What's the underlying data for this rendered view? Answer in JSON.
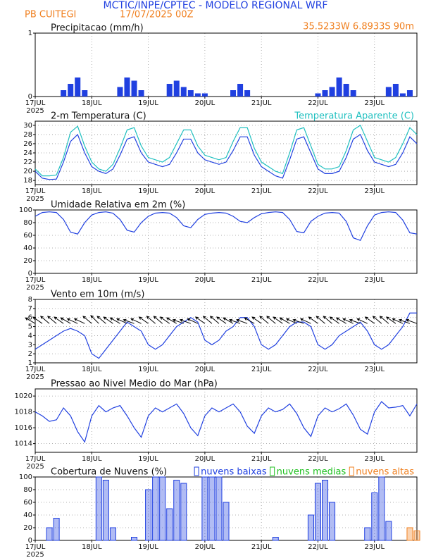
{
  "header": {
    "title": "MCTIC/INPE/CPTEC - MODELO REGIONAL WRF",
    "station": "PB CUITEGI",
    "run": "17/07/2025 00Z",
    "location": "35.5233W 6.8933S 90m"
  },
  "chart_data": [
    {
      "type": "bar",
      "title": "Precipitacao (mm/h)",
      "year_label": "2025",
      "x": [
        0,
        3,
        6,
        9,
        12,
        15,
        18,
        21,
        24,
        27,
        30,
        33,
        36,
        39,
        42,
        45,
        48,
        51,
        54,
        57,
        60,
        63,
        66,
        69,
        72,
        75,
        78,
        81,
        84,
        87,
        90,
        93,
        96,
        99,
        102,
        105,
        108,
        111,
        114,
        117,
        120,
        123,
        126,
        129,
        132,
        135,
        138,
        141,
        144,
        147,
        150,
        153,
        156,
        159,
        162
      ],
      "series": [
        {
          "name": null,
          "color": "#2040e0",
          "values": [
            0,
            0,
            0,
            0,
            0.1,
            0.2,
            0.3,
            0.1,
            0,
            0,
            0,
            0,
            0.15,
            0.3,
            0.25,
            0.1,
            0,
            0,
            0,
            0.2,
            0.25,
            0.15,
            0.1,
            0.05,
            0.05,
            0,
            0,
            0,
            0.1,
            0.2,
            0.1,
            0,
            0,
            0,
            0,
            0,
            0,
            0,
            0,
            0,
            0.05,
            0.1,
            0.15,
            0.3,
            0.2,
            0.1,
            0,
            0,
            0,
            0,
            0.15,
            0.2,
            0.05,
            0.1,
            0
          ]
        }
      ],
      "xlim": [
        0,
        162
      ],
      "xticks": [
        {
          "value": 0,
          "label": "17JUL"
        },
        {
          "value": 24,
          "label": "18JUL"
        },
        {
          "value": 48,
          "label": "19JUL"
        },
        {
          "value": 72,
          "label": "20JUL"
        },
        {
          "value": 96,
          "label": "21JUL"
        },
        {
          "value": 120,
          "label": "22JUL"
        },
        {
          "value": 144,
          "label": "23JUL"
        }
      ],
      "ylim": [
        0,
        1
      ],
      "yticks": [
        0,
        1
      ],
      "grid": true
    },
    {
      "type": "line",
      "year_label": "2025",
      "x": [
        0,
        3,
        6,
        9,
        12,
        15,
        18,
        21,
        24,
        27,
        30,
        33,
        36,
        39,
        42,
        45,
        48,
        51,
        54,
        57,
        60,
        63,
        66,
        69,
        72,
        75,
        78,
        81,
        84,
        87,
        90,
        93,
        96,
        99,
        102,
        105,
        108,
        111,
        114,
        117,
        120,
        123,
        126,
        129,
        132,
        135,
        138,
        141,
        144,
        147,
        150,
        153,
        156,
        159,
        162
      ],
      "series": [
        {
          "name": "2-m Temperatura (C)",
          "color": "#2040e0",
          "values": [
            20,
            18.5,
            18.2,
            18.3,
            22,
            26.5,
            28,
            24,
            21,
            20,
            19.5,
            20.5,
            23.5,
            27,
            27.5,
            24,
            22,
            21.5,
            21,
            21.5,
            24,
            27,
            27,
            24,
            22.5,
            22,
            21.5,
            22,
            24.5,
            27.5,
            27.5,
            23.5,
            21,
            20,
            19,
            18.5,
            22.5,
            27,
            27.5,
            24,
            20.5,
            19.5,
            19.5,
            20,
            23,
            27,
            28,
            24.5,
            22,
            21.5,
            21,
            21.5,
            24,
            27.5,
            26
          ]
        },
        {
          "name": "Temperatura Aparente (C)",
          "color": "#20c0c0",
          "values": [
            20.5,
            19,
            19,
            19.2,
            23,
            28.5,
            29.8,
            25.5,
            22,
            20.5,
            20,
            21.5,
            25,
            29,
            29.5,
            25.5,
            23,
            22.5,
            22,
            23,
            26,
            29,
            29,
            25.5,
            23.5,
            23,
            22.5,
            23,
            26.5,
            29.5,
            29.5,
            25,
            22,
            21,
            20,
            19.5,
            24,
            29,
            29.5,
            25.5,
            21.5,
            20.5,
            20.5,
            21,
            24.5,
            29,
            30,
            26.5,
            23,
            22.5,
            22,
            23,
            26,
            29.5,
            28
          ]
        }
      ],
      "xlim": [
        0,
        162
      ],
      "xticks": [
        {
          "value": 0,
          "label": "17JUL"
        },
        {
          "value": 24,
          "label": "18JUL"
        },
        {
          "value": 48,
          "label": "19JUL"
        },
        {
          "value": 72,
          "label": "20JUL"
        },
        {
          "value": 96,
          "label": "21JUL"
        },
        {
          "value": 120,
          "label": "22JUL"
        },
        {
          "value": 144,
          "label": "23JUL"
        }
      ],
      "ylim": [
        17.1,
        30.9
      ],
      "yticks": [
        18,
        20,
        22,
        24,
        26,
        28,
        30
      ],
      "grid": true,
      "legend": "top-right"
    },
    {
      "type": "line",
      "title": "Umidade Relativa em 2m (%)",
      "year_label": "2025",
      "x": [
        0,
        3,
        6,
        9,
        12,
        15,
        18,
        21,
        24,
        27,
        30,
        33,
        36,
        39,
        42,
        45,
        48,
        51,
        54,
        57,
        60,
        63,
        66,
        69,
        72,
        75,
        78,
        81,
        84,
        87,
        90,
        93,
        96,
        99,
        102,
        105,
        108,
        111,
        114,
        117,
        120,
        123,
        126,
        129,
        132,
        135,
        138,
        141,
        144,
        147,
        150,
        153,
        156,
        159,
        162
      ],
      "series": [
        {
          "name": null,
          "color": "#2040e0",
          "values": [
            90,
            96,
            97,
            96,
            85,
            65,
            62,
            80,
            92,
            96,
            97,
            95,
            85,
            68,
            65,
            80,
            90,
            95,
            96,
            95,
            88,
            75,
            72,
            85,
            93,
            95,
            96,
            95,
            90,
            82,
            80,
            88,
            94,
            96,
            97,
            96,
            85,
            66,
            64,
            82,
            90,
            95,
            96,
            95,
            82,
            56,
            52,
            75,
            92,
            96,
            97,
            96,
            84,
            64,
            62
          ]
        }
      ],
      "xlim": [
        0,
        162
      ],
      "xticks": [
        {
          "value": 0,
          "label": "17JUL"
        },
        {
          "value": 24,
          "label": "18JUL"
        },
        {
          "value": 48,
          "label": "19JUL"
        },
        {
          "value": 72,
          "label": "20JUL"
        },
        {
          "value": 96,
          "label": "21JUL"
        },
        {
          "value": 120,
          "label": "22JUL"
        },
        {
          "value": 144,
          "label": "23JUL"
        }
      ],
      "ylim": [
        0,
        100
      ],
      "yticks": [
        0,
        20,
        40,
        60,
        80,
        100
      ],
      "grid": true
    },
    {
      "type": "line",
      "title": "Vento em 10m (m/s)",
      "year_label": "2025",
      "x": [
        0,
        3,
        6,
        9,
        12,
        15,
        18,
        21,
        24,
        27,
        30,
        33,
        36,
        39,
        42,
        45,
        48,
        51,
        54,
        57,
        60,
        63,
        66,
        69,
        72,
        75,
        78,
        81,
        84,
        87,
        90,
        93,
        96,
        99,
        102,
        105,
        108,
        111,
        114,
        117,
        120,
        123,
        126,
        129,
        132,
        135,
        138,
        141,
        144,
        147,
        150,
        153,
        156,
        159,
        162
      ],
      "series": [
        {
          "name": null,
          "color": "#2040e0",
          "values": [
            2.5,
            3,
            3.5,
            4,
            4.5,
            4.8,
            4.5,
            4,
            2,
            1.5,
            2.5,
            3.5,
            4.5,
            5.5,
            5,
            4.5,
            3,
            2.5,
            3,
            4,
            5,
            5.5,
            6,
            5.5,
            3.5,
            3,
            3.5,
            4.5,
            5,
            6,
            6,
            5,
            3,
            2.5,
            3,
            4,
            5,
            5.5,
            5.5,
            5,
            3,
            2.5,
            3,
            4,
            4.5,
            5,
            5.5,
            4.5,
            3,
            2.5,
            3,
            4,
            5,
            6.5,
            6.5
          ],
          "direction": [
            120,
            125,
            130,
            130,
            125,
            120,
            115,
            115,
            130,
            135,
            130,
            125,
            120,
            115,
            110,
            115,
            125,
            130,
            130,
            125,
            120,
            110,
            110,
            115,
            125,
            130,
            130,
            125,
            120,
            110,
            110,
            120,
            125,
            130,
            130,
            125,
            120,
            115,
            110,
            115,
            125,
            130,
            130,
            125,
            120,
            115,
            110,
            115,
            125,
            130,
            130,
            125,
            115,
            110,
            110
          ]
        }
      ],
      "xlim": [
        0,
        162
      ],
      "xticks": [
        {
          "value": 0,
          "label": "17JUL"
        },
        {
          "value": 24,
          "label": "18JUL"
        },
        {
          "value": 48,
          "label": "19JUL"
        },
        {
          "value": 72,
          "label": "20JUL"
        },
        {
          "value": 96,
          "label": "21JUL"
        },
        {
          "value": 120,
          "label": "22JUL"
        },
        {
          "value": 144,
          "label": "23JUL"
        }
      ],
      "ylim": [
        1,
        8
      ],
      "yticks": [
        1,
        2,
        3,
        4,
        5,
        6,
        7,
        8
      ],
      "grid": true
    },
    {
      "type": "line",
      "title": "Pressao ao Nivel Medio do Mar (hPa)",
      "year_label": "2025",
      "x": [
        0,
        3,
        6,
        9,
        12,
        15,
        18,
        21,
        24,
        27,
        30,
        33,
        36,
        39,
        42,
        45,
        48,
        51,
        54,
        57,
        60,
        63,
        66,
        69,
        72,
        75,
        78,
        81,
        84,
        87,
        90,
        93,
        96,
        99,
        102,
        105,
        108,
        111,
        114,
        117,
        120,
        123,
        126,
        129,
        132,
        135,
        138,
        141,
        144,
        147,
        150,
        153,
        156,
        159,
        162
      ],
      "series": [
        {
          "name": null,
          "color": "#2040e0",
          "values": [
            1018,
            1017.5,
            1016.8,
            1017,
            1018.5,
            1017.5,
            1015.5,
            1014.2,
            1017.5,
            1018.8,
            1018,
            1018.5,
            1018.8,
            1017.5,
            1016,
            1014.8,
            1017.5,
            1018.5,
            1018,
            1018.5,
            1019,
            1017.8,
            1016,
            1015,
            1017.5,
            1018.5,
            1018,
            1018.5,
            1019,
            1018,
            1016.2,
            1015.3,
            1017.5,
            1018.5,
            1018,
            1018.3,
            1019,
            1017.8,
            1016,
            1014.9,
            1017.5,
            1018.5,
            1018,
            1018.4,
            1019,
            1017.6,
            1015.8,
            1015.2,
            1018,
            1019.3,
            1018.5,
            1018.6,
            1018.8,
            1017.5,
            1019
          ]
        }
      ],
      "xlim": [
        0,
        162
      ],
      "xticks": [
        {
          "value": 0,
          "label": "17JUL"
        },
        {
          "value": 24,
          "label": "18JUL"
        },
        {
          "value": 48,
          "label": "19JUL"
        },
        {
          "value": 72,
          "label": "20JUL"
        },
        {
          "value": 96,
          "label": "21JUL"
        },
        {
          "value": 120,
          "label": "22JUL"
        },
        {
          "value": 144,
          "label": "23JUL"
        }
      ],
      "ylim": [
        1012.9,
        1020.9
      ],
      "yticks": [
        1014,
        1016,
        1018,
        1020
      ],
      "grid": true
    },
    {
      "type": "bar",
      "title": "Cobertura de Nuvens (%)",
      "year_label": "2025",
      "x": [
        0,
        3,
        6,
        9,
        12,
        15,
        18,
        21,
        24,
        27,
        30,
        33,
        36,
        39,
        42,
        45,
        48,
        51,
        54,
        57,
        60,
        63,
        66,
        69,
        72,
        75,
        78,
        81,
        84,
        87,
        90,
        93,
        96,
        99,
        102,
        105,
        108,
        111,
        114,
        117,
        120,
        123,
        126,
        129,
        132,
        135,
        138,
        141,
        144,
        147,
        150,
        153,
        156,
        159,
        162
      ],
      "series": [
        {
          "name": "nuvens baixas",
          "color": "#2040e0",
          "values": [
            0,
            0,
            20,
            35,
            0,
            0,
            0,
            0,
            0,
            100,
            95,
            20,
            0,
            0,
            5,
            0,
            80,
            100,
            100,
            50,
            95,
            90,
            0,
            0,
            100,
            100,
            100,
            60,
            0,
            0,
            0,
            0,
            0,
            0,
            5,
            0,
            0,
            0,
            0,
            40,
            90,
            95,
            60,
            0,
            0,
            0,
            0,
            20,
            75,
            100,
            30,
            0,
            0,
            0,
            0
          ]
        },
        {
          "name": "nuvens medias",
          "color": "#20c020",
          "values": [
            0,
            0,
            0,
            0,
            0,
            0,
            0,
            0,
            0,
            0,
            0,
            0,
            0,
            0,
            0,
            0,
            0,
            0,
            0,
            0,
            0,
            0,
            0,
            0,
            0,
            0,
            0,
            0,
            0,
            0,
            0,
            0,
            0,
            0,
            0,
            0,
            0,
            0,
            0,
            0,
            0,
            0,
            0,
            0,
            0,
            0,
            0,
            0,
            0,
            0,
            0,
            0,
            0,
            0,
            0
          ]
        },
        {
          "name": "nuvens altas",
          "color": "#f08020",
          "values": [
            0,
            0,
            0,
            0,
            0,
            0,
            0,
            0,
            0,
            0,
            0,
            0,
            0,
            0,
            0,
            0,
            0,
            0,
            0,
            0,
            0,
            0,
            0,
            0,
            0,
            0,
            0,
            0,
            0,
            0,
            0,
            0,
            0,
            0,
            0,
            0,
            0,
            0,
            0,
            0,
            0,
            0,
            0,
            0,
            0,
            0,
            0,
            0,
            0,
            0,
            0,
            0,
            0,
            20,
            15
          ]
        }
      ],
      "xlim": [
        0,
        162
      ],
      "xticks": [
        {
          "value": 0,
          "label": "17JUL"
        },
        {
          "value": 24,
          "label": "18JUL"
        },
        {
          "value": 48,
          "label": "19JUL"
        },
        {
          "value": 72,
          "label": "20JUL"
        },
        {
          "value": 96,
          "label": "21JUL"
        },
        {
          "value": 120,
          "label": "22JUL"
        },
        {
          "value": 144,
          "label": "23JUL"
        }
      ],
      "ylim": [
        0,
        100
      ],
      "yticks": [
        0,
        20,
        40,
        60,
        80,
        100
      ],
      "grid": true,
      "legend": "top-right"
    }
  ]
}
